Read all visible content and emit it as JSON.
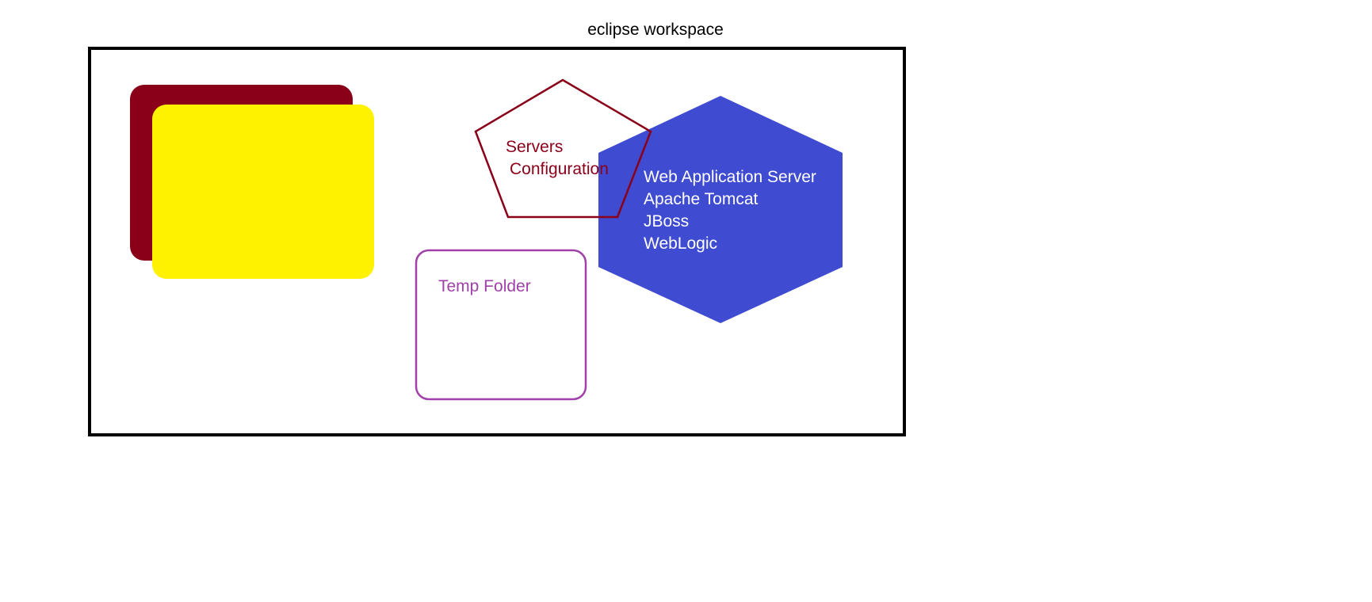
{
  "title": "eclipse workspace",
  "colors": {
    "frame": "#000000",
    "back_card": "#8a0018",
    "front_card": "#fff200",
    "pentagon_stroke": "#8a0018",
    "pentagon_text": "#8a0018",
    "hexagon_fill": "#3f4bd1",
    "hexagon_text": "#ffffff",
    "temp_folder_stroke": "#a040a8",
    "temp_folder_text": "#a040a8"
  },
  "servers_configuration": {
    "line1": "Servers",
    "line2": "Configuration"
  },
  "web_application_server": {
    "lines": [
      "Web Application Server",
      "Apache Tomcat",
      "JBoss",
      "WebLogic"
    ]
  },
  "temp_folder": {
    "label": "Temp Folder"
  }
}
